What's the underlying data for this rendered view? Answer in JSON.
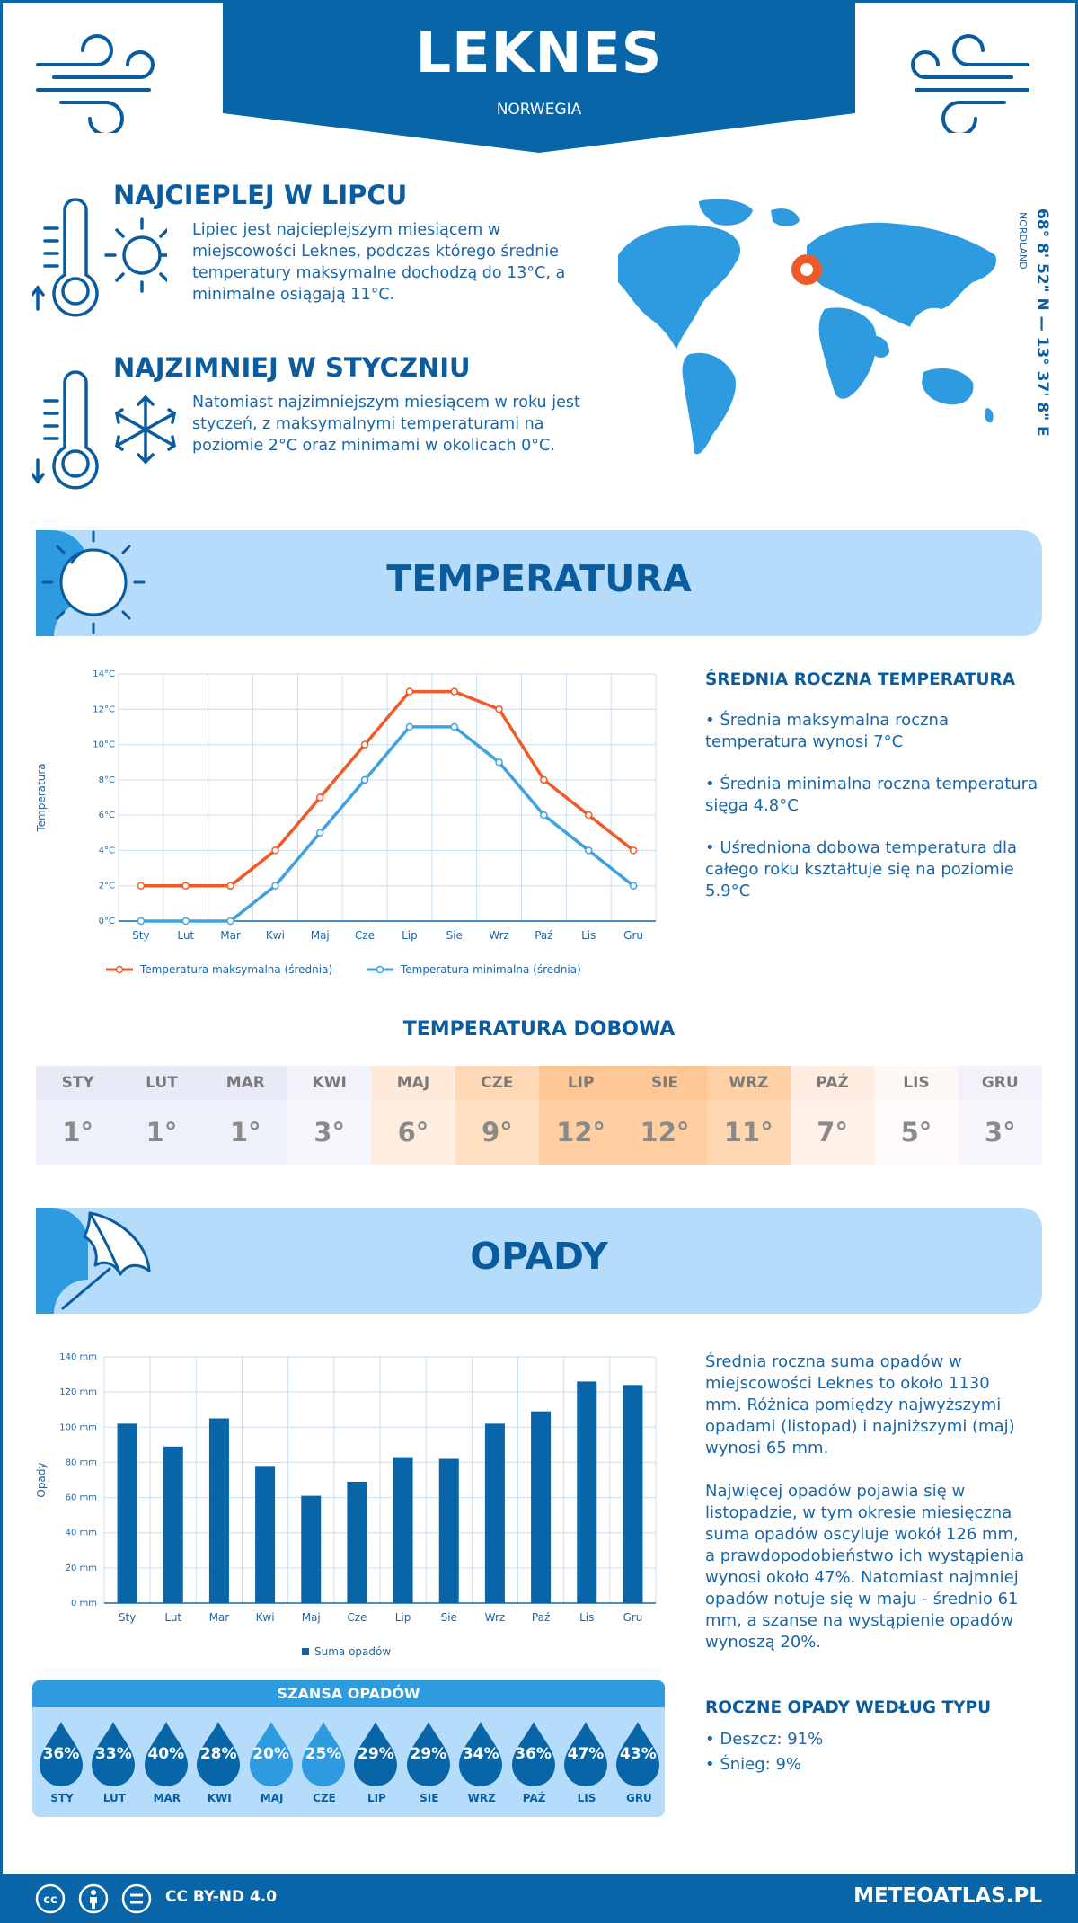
{
  "header": {
    "title": "LEKNES",
    "country": "NORWEGIA"
  },
  "facts": {
    "warmest": {
      "title": "NAJCIEPLEJ W LIPCU",
      "text": "Lipiec jest najcieplejszym miesiącem w miejscowości Leknes, podczas którego średnie temperatury maksymalne dochodzą do 13°C, a minimalne osiągają 11°C."
    },
    "coldest": {
      "title": "NAJZIMNIEJ W STYCZNIU",
      "text": "Natomiast najzimniejszym miesiącem w roku jest styczeń, z maksymalnymi temperaturami na poziomie 2°C oraz minimami w okolicach 0°C."
    }
  },
  "location": {
    "coords": "68° 8' 52\" N — 13° 37' 8\" E",
    "region": "NORDLAND"
  },
  "temperature": {
    "section_title": "TEMPERATURA",
    "side_title": "ŚREDNIA ROCZNA TEMPERATURA",
    "bullets": [
      "• Średnia maksymalna roczna temperatura wynosi 7°C",
      "• Średnia minimalna roczna temperatura sięga 4.8°C",
      "• Uśredniona dobowa temperatura dla całego roku kształtuje się na poziomie 5.9°C"
    ]
  },
  "daily": {
    "title": "TEMPERATURA DOBOWA",
    "months": [
      "STY",
      "LUT",
      "MAR",
      "KWI",
      "MAJ",
      "CZE",
      "LIP",
      "SIE",
      "WRZ",
      "PAŹ",
      "LIS",
      "GRU"
    ],
    "values": [
      "1°",
      "1°",
      "1°",
      "3°",
      "6°",
      "9°",
      "12°",
      "12°",
      "11°",
      "7°",
      "5°",
      "3°"
    ],
    "header_colors": [
      "#e9eaf8",
      "#e9eaf8",
      "#e9eaf8",
      "#f1f2fa",
      "#ffe9d8",
      "#ffd8b5",
      "#ffc796",
      "#ffc796",
      "#ffd0a6",
      "#ffece0",
      "#fdf8f6",
      "#f1f2fa"
    ],
    "value_colors": [
      "#eef0fb",
      "#eef0fb",
      "#eef0fb",
      "#f6f7fc",
      "#ffeedf",
      "#ffdfc1",
      "#ffcfa1",
      "#ffcfa1",
      "#ffd7b1",
      "#fff1e7",
      "#fefbfa",
      "#f6f7fc"
    ]
  },
  "precip": {
    "section_title": "OPADY",
    "paragraph1": "Średnia roczna suma opadów w miejscowości Leknes to około 1130 mm. Różnica pomiędzy najwyższymi opadami (listopad) i najniższymi (maj) wynosi 65 mm.",
    "paragraph2": "Najwięcej opadów pojawia się w listopadzie, w tym okresie miesięczna suma opadów oscyluje wokół 126 mm, a prawdopodobieństwo ich wystąpienia wynosi około 47%. Natomiast najmniej opadów notuje się w maju - średnio 61 mm, a szanse na wystąpienie opadów wynoszą 20%.",
    "type_title": "ROCZNE OPADY WEDŁUG TYPU",
    "types": [
      "• Deszcz: 91%",
      "• Śnieg: 9%"
    ]
  },
  "chance": {
    "title": "SZANSA OPADÓW",
    "months": [
      "STY",
      "LUT",
      "MAR",
      "KWI",
      "MAJ",
      "CZE",
      "LIP",
      "SIE",
      "WRZ",
      "PAŹ",
      "LIS",
      "GRU"
    ],
    "values": [
      "36%",
      "33%",
      "40%",
      "28%",
      "20%",
      "25%",
      "29%",
      "29%",
      "34%",
      "36%",
      "47%",
      "43%"
    ],
    "colors": [
      "#0866a8",
      "#0866a8",
      "#0866a8",
      "#0866a8",
      "#2e9ae0",
      "#2e9ae0",
      "#0866a8",
      "#0866a8",
      "#0866a8",
      "#0866a8",
      "#0866a8",
      "#0866a8"
    ]
  },
  "footer": {
    "license": "CC BY-ND 4.0",
    "site": "METEOATLAS.PL"
  },
  "colors": {
    "primary": "#0866a8",
    "light": "#b6dcfb",
    "max_line": "#f05a28",
    "min_line": "#3fa2e0"
  },
  "chart_data": [
    {
      "type": "line",
      "categories": [
        "Sty",
        "Lut",
        "Mar",
        "Kwi",
        "Maj",
        "Cze",
        "Lip",
        "Sie",
        "Wrz",
        "Paź",
        "Lis",
        "Gru"
      ],
      "series": [
        {
          "name": "Temperatura maksymalna (średnia)",
          "values": [
            2,
            2,
            2,
            4,
            7,
            10,
            13,
            13,
            12,
            8,
            6,
            4
          ]
        },
        {
          "name": "Temperatura minimalna (średnia)",
          "values": [
            0,
            0,
            0,
            2,
            5,
            8,
            11,
            11,
            9,
            6,
            4,
            2
          ]
        }
      ],
      "ylabel": "Temperatura",
      "ylim": [
        0,
        14
      ],
      "yticks": [
        "0°C",
        "2°C",
        "4°C",
        "6°C",
        "8°C",
        "10°C",
        "12°C",
        "14°C"
      ],
      "grid": true,
      "legend": "bottom"
    },
    {
      "type": "bar",
      "categories": [
        "Sty",
        "Lut",
        "Mar",
        "Kwi",
        "Maj",
        "Cze",
        "Lip",
        "Sie",
        "Wrz",
        "Paź",
        "Lis",
        "Gru"
      ],
      "series": [
        {
          "name": "Suma opadów",
          "values": [
            102,
            89,
            105,
            78,
            61,
            69,
            83,
            82,
            102,
            109,
            126,
            124
          ]
        }
      ],
      "ylabel": "Opady",
      "ylim": [
        0,
        140
      ],
      "yticks": [
        "0 mm",
        "20 mm",
        "40 mm",
        "60 mm",
        "80 mm",
        "100 mm",
        "120 mm",
        "140 mm"
      ],
      "grid": true,
      "legend": "bottom"
    }
  ]
}
